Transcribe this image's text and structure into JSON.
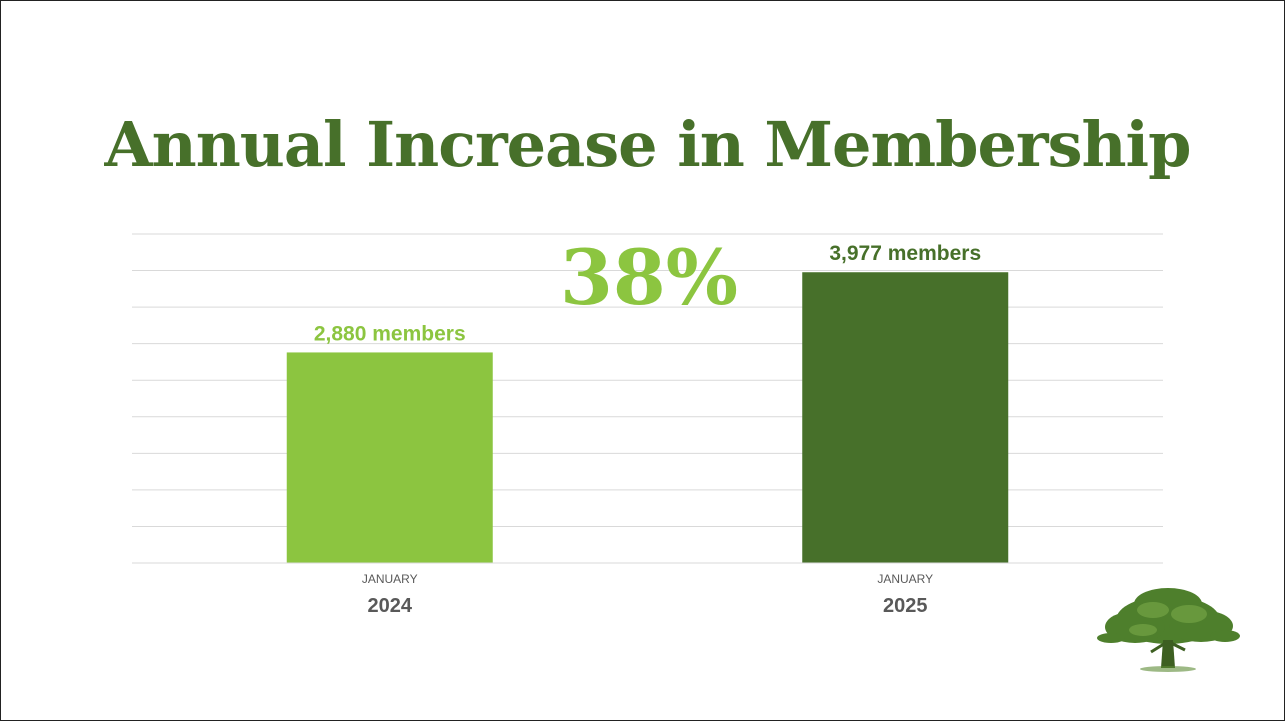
{
  "slide": {
    "title": "Annual Increase in Membership",
    "highlight": "38%"
  },
  "colors": {
    "title": "#47702a",
    "bar_2024": "#8cc540",
    "bar_2025": "#47702a",
    "highlight": "#8cc540",
    "gridline": "#d9d9d9",
    "axis_text": "#595959"
  },
  "logo": {
    "icon": "tree-icon"
  },
  "chart_data": {
    "type": "bar",
    "categories": [
      {
        "month": "JANUARY",
        "year": "2024"
      },
      {
        "month": "JANUARY",
        "year": "2025"
      }
    ],
    "values": [
      2880,
      3977
    ],
    "data_labels": [
      "2,880 members",
      "3,977 members"
    ],
    "ylim": [
      0,
      4500
    ],
    "grid": true,
    "legend": "none"
  }
}
